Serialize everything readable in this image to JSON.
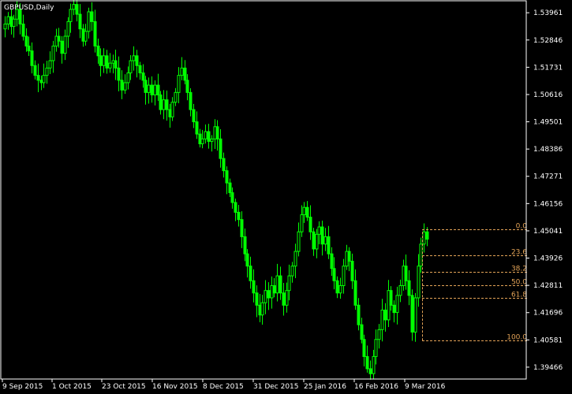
{
  "chart_data": {
    "type": "candlestick",
    "symbol_label": "GBPUSD,Daily",
    "colors": {
      "background": "#000000",
      "candle": "#00ff00",
      "axis": "#ffffff",
      "fib": "#e3a357"
    },
    "y_ticks": [
      "1.53961",
      "1.52846",
      "1.51731",
      "1.50616",
      "1.49501",
      "1.48386",
      "1.47271",
      "1.46156",
      "1.45041",
      "1.43926",
      "1.42811",
      "1.41696",
      "1.40581",
      "1.39466"
    ],
    "x_ticks": [
      "9 Sep 2015",
      "1 Oct 2015",
      "23 Oct 2015",
      "16 Nov 2015",
      "8 Dec 2015",
      "31 Dec 2015",
      "25 Jan 2016",
      "16 Feb 2016",
      "9 Mar 2016"
    ],
    "ylim": [
      1.3898,
      1.5445
    ],
    "fibonacci": {
      "high": 1.451,
      "low": 1.4055,
      "levels": [
        {
          "label": "0.0",
          "ratio": 0.0
        },
        {
          "label": "23.6",
          "ratio": 0.236
        },
        {
          "label": "38.2",
          "ratio": 0.382
        },
        {
          "label": "50.0",
          "ratio": 0.5
        },
        {
          "label": "61.8",
          "ratio": 0.618
        },
        {
          "label": "100.0",
          "ratio": 1.0
        }
      ]
    },
    "close_path": [
      1.535,
      1.538,
      1.534,
      1.537,
      1.541,
      1.535,
      1.53,
      1.526,
      1.524,
      1.518,
      1.514,
      1.512,
      1.511,
      1.514,
      1.517,
      1.52,
      1.526,
      1.53,
      1.528,
      1.523,
      1.53,
      1.536,
      1.541,
      1.543,
      1.539,
      1.533,
      1.528,
      1.532,
      1.54,
      1.536,
      1.526,
      1.522,
      1.518,
      1.522,
      1.517,
      1.519,
      1.52,
      1.517,
      1.512,
      1.508,
      1.511,
      1.515,
      1.52,
      1.522,
      1.518,
      1.515,
      1.512,
      1.507,
      1.51,
      1.506,
      1.51,
      1.506,
      1.5,
      1.504,
      1.5,
      1.497,
      1.503,
      1.507,
      1.514,
      1.517,
      1.512,
      1.507,
      1.5,
      1.495,
      1.49,
      1.486,
      1.488,
      1.491,
      1.487,
      1.488,
      1.493,
      1.488,
      1.48,
      1.475,
      1.47,
      1.466,
      1.462,
      1.458,
      1.455,
      1.448,
      1.441,
      1.436,
      1.43,
      1.425,
      1.42,
      1.416,
      1.421,
      1.426,
      1.423,
      1.428,
      1.425,
      1.432,
      1.425,
      1.42,
      1.426,
      1.432,
      1.436,
      1.442,
      1.45,
      1.457,
      1.46,
      1.456,
      1.45,
      1.443,
      1.449,
      1.452,
      1.445,
      1.448,
      1.441,
      1.435,
      1.43,
      1.425,
      1.428,
      1.436,
      1.442,
      1.438,
      1.43,
      1.42,
      1.412,
      1.406,
      1.399,
      1.394,
      1.392,
      1.399,
      1.406,
      1.41,
      1.418,
      1.414,
      1.426,
      1.42,
      1.417,
      1.424,
      1.428,
      1.436,
      1.43,
      1.424,
      1.409,
      1.423,
      1.436,
      1.445,
      1.45,
      1.447
    ]
  }
}
